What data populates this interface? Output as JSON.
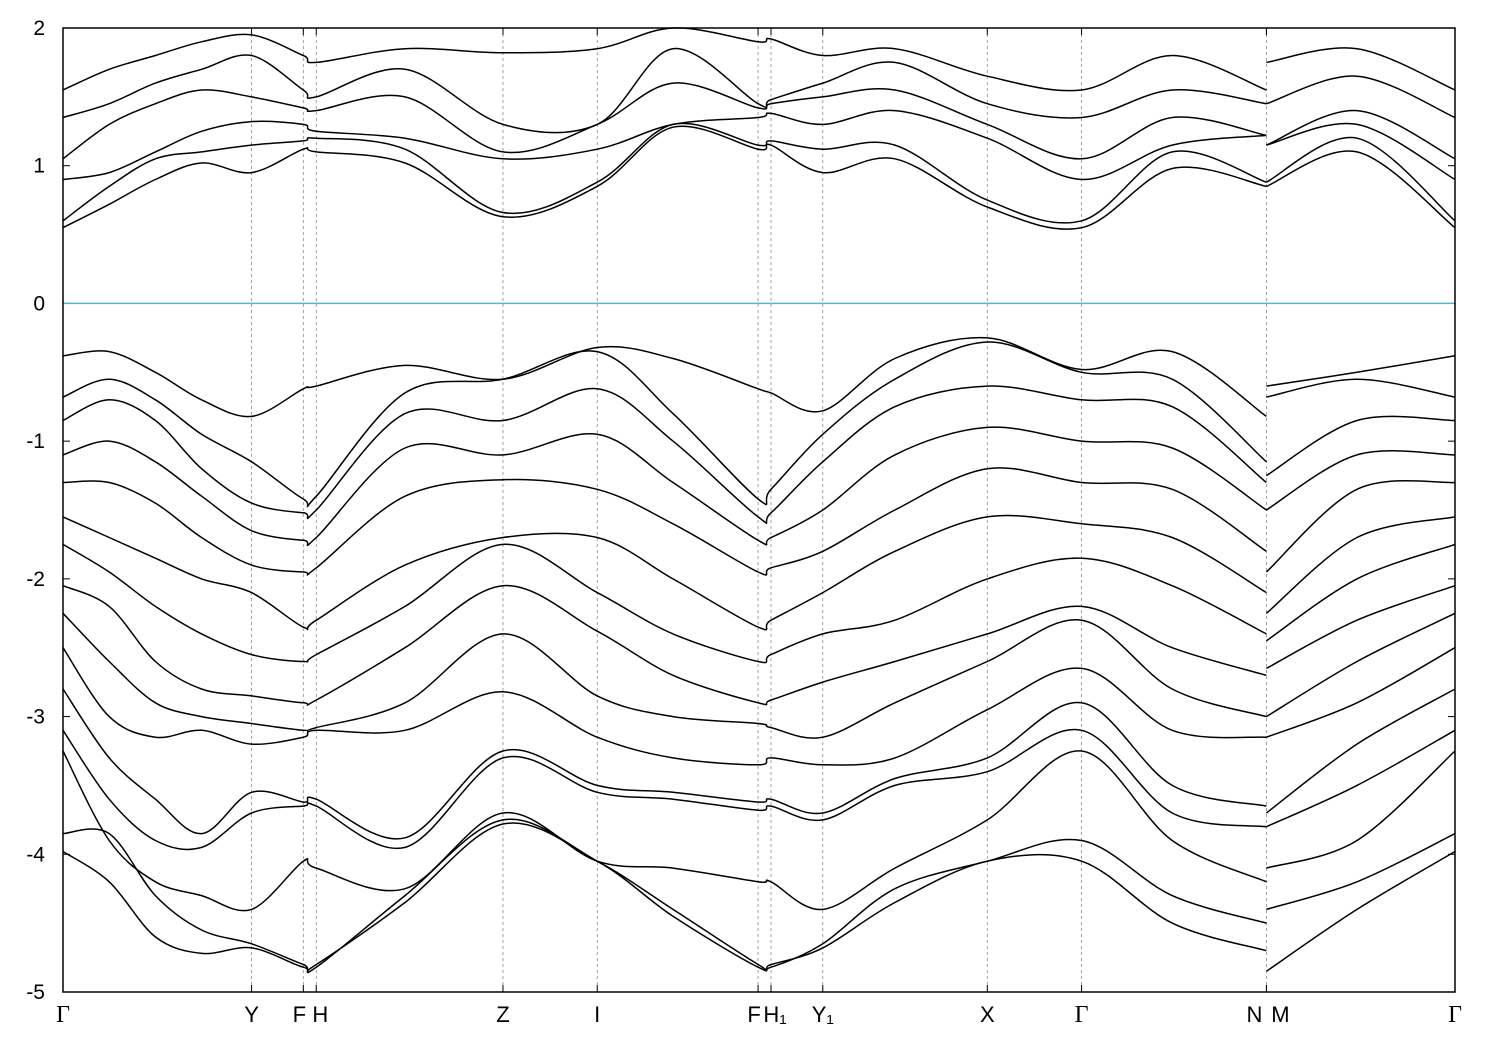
{
  "chart_data": {
    "type": "line",
    "title": "",
    "xlabel": "",
    "ylabel": "",
    "ylim": [
      -5,
      2
    ],
    "yticks": [
      2,
      1,
      0,
      -1,
      -2,
      -3,
      -4,
      -5
    ],
    "ytick_labels": [
      "2",
      "1",
      "0",
      "-1",
      "-2",
      "-3",
      "-4",
      "-5"
    ],
    "xlim": [
      0,
      7.53
    ],
    "high_symmetry_points": [
      {
        "label": "Γ",
        "x": 0.0
      },
      {
        "label": "Y",
        "x": 1.02
      },
      {
        "label": "F",
        "x": 1.3
      },
      {
        "label": "H",
        "x": 1.37
      },
      {
        "label": "Z",
        "x": 2.38
      },
      {
        "label": "I",
        "x": 2.89
      },
      {
        "label": "F",
        "x": 3.76
      },
      {
        "label": "H₁",
        "x": 3.83
      },
      {
        "label": "Y₁",
        "x": 4.11
      },
      {
        "label": "X",
        "x": 5.0
      },
      {
        "label": "Γ",
        "x": 5.51
      },
      {
        "label": "N",
        "x": 6.51
      },
      {
        "label": "M",
        "x": 6.51
      },
      {
        "label": "Γ",
        "x": 7.53
      }
    ],
    "grid": "dashed vertical lines at high-symmetry points",
    "fermi_level": {
      "y": 0,
      "color": "#5ab4c8"
    },
    "series": [
      {
        "x": [
          0,
          0.25,
          0.5,
          0.75,
          1.02,
          1.3,
          1.37,
          1.85,
          2.38,
          2.89,
          3.3,
          3.76,
          3.83,
          4.11,
          4.5,
          5.0,
          5.51,
          6.0,
          6.51,
          6.51,
          7.0,
          7.53
        ],
        "values": [
          0.55,
          0.72,
          0.9,
          1.02,
          0.95,
          1.12,
          1.1,
          1.02,
          0.63,
          0.85,
          1.28,
          1.12,
          1.15,
          0.95,
          1.05,
          0.7,
          0.55,
          0.98,
          0.85,
          0.85,
          1.1,
          0.55
        ]
      },
      {
        "x": [
          0,
          0.25,
          0.5,
          0.75,
          1.02,
          1.3,
          1.37,
          1.85,
          2.38,
          2.89,
          3.3,
          3.76,
          3.83,
          4.11,
          4.5,
          5.0,
          5.51,
          6.0,
          6.51,
          6.51,
          7.0,
          7.53
        ],
        "values": [
          0.6,
          0.85,
          1.05,
          1.1,
          1.15,
          1.18,
          1.2,
          1.12,
          0.66,
          0.88,
          1.3,
          1.15,
          1.18,
          1.12,
          1.15,
          0.75,
          0.6,
          1.1,
          0.88,
          0.88,
          1.2,
          0.6
        ]
      },
      {
        "x": [
          0,
          0.25,
          0.5,
          0.75,
          1.02,
          1.3,
          1.37,
          1.85,
          2.38,
          2.89,
          3.3,
          3.76,
          3.83,
          4.11,
          4.5,
          5.0,
          5.51,
          6.0,
          6.51,
          6.51,
          7.0,
          7.53
        ],
        "values": [
          0.9,
          0.95,
          1.1,
          1.25,
          1.32,
          1.3,
          1.25,
          1.2,
          1.05,
          1.12,
          1.3,
          1.35,
          1.38,
          1.3,
          1.4,
          1.2,
          0.9,
          1.15,
          1.22,
          1.15,
          1.3,
          0.9
        ]
      },
      {
        "x": [
          0,
          0.25,
          0.5,
          0.75,
          1.02,
          1.3,
          1.37,
          1.85,
          2.38,
          2.89,
          3.3,
          3.76,
          3.83,
          4.11,
          4.5,
          5.0,
          5.51,
          6.0,
          6.51,
          6.51,
          7.0,
          7.53
        ],
        "values": [
          1.05,
          1.3,
          1.45,
          1.55,
          1.5,
          1.42,
          1.4,
          1.5,
          1.1,
          1.3,
          1.6,
          1.42,
          1.45,
          1.5,
          1.55,
          1.3,
          1.05,
          1.35,
          1.22,
          1.15,
          1.4,
          1.05
        ]
      },
      {
        "x": [
          0,
          0.25,
          0.5,
          0.75,
          1.02,
          1.3,
          1.37,
          1.85,
          2.38,
          2.89,
          3.3,
          3.76,
          3.83,
          4.11,
          4.5,
          5.0,
          5.51,
          6.0,
          6.51,
          6.51,
          7.0,
          7.53
        ],
        "values": [
          1.35,
          1.45,
          1.6,
          1.7,
          1.8,
          1.55,
          1.5,
          1.7,
          1.3,
          1.3,
          1.85,
          1.45,
          1.48,
          1.6,
          1.75,
          1.45,
          1.35,
          1.55,
          1.45,
          1.45,
          1.65,
          1.35
        ]
      },
      {
        "x": [
          0,
          0.25,
          0.5,
          0.75,
          1.02,
          1.3,
          1.37,
          1.85,
          2.38,
          2.89,
          3.3,
          3.76,
          3.83,
          4.11,
          4.5,
          5.0,
          5.51,
          6.0,
          6.51,
          6.51,
          7.0,
          7.53
        ],
        "values": [
          1.55,
          1.7,
          1.8,
          1.9,
          1.95,
          1.8,
          1.75,
          1.85,
          1.82,
          1.85,
          2.0,
          1.9,
          1.92,
          1.8,
          1.85,
          1.65,
          1.55,
          1.8,
          1.55,
          1.75,
          1.85,
          1.55
        ]
      },
      {
        "x": [
          0,
          0.25,
          0.5,
          0.75,
          1.02,
          1.3,
          1.37,
          1.85,
          2.38,
          2.89,
          3.3,
          3.76,
          3.83,
          4.11,
          4.5,
          5.0,
          5.51,
          6.0,
          6.51,
          6.51,
          7.0,
          7.53
        ],
        "values": [
          -0.38,
          -0.35,
          -0.5,
          -0.7,
          -0.82,
          -0.62,
          -0.6,
          -0.45,
          -0.55,
          -0.32,
          -0.4,
          -0.62,
          -0.65,
          -0.78,
          -0.4,
          -0.25,
          -0.48,
          -0.35,
          -0.82,
          -0.6,
          -0.5,
          -0.38
        ]
      },
      {
        "x": [
          0,
          0.25,
          0.5,
          0.75,
          1.02,
          1.3,
          1.37,
          1.85,
          2.38,
          2.89,
          3.3,
          3.76,
          3.83,
          4.11,
          4.5,
          5.0,
          5.51,
          6.0,
          6.51,
          6.51,
          7.0,
          7.53
        ],
        "values": [
          -0.68,
          -0.55,
          -0.7,
          -0.95,
          -1.15,
          -1.42,
          -1.4,
          -0.65,
          -0.55,
          -0.35,
          -0.8,
          -1.42,
          -1.35,
          -0.95,
          -0.55,
          -0.28,
          -0.5,
          -0.55,
          -1.15,
          -0.68,
          -0.55,
          -0.68
        ]
      },
      {
        "x": [
          0,
          0.25,
          0.5,
          0.75,
          1.02,
          1.3,
          1.37,
          1.85,
          2.38,
          2.89,
          3.3,
          3.76,
          3.83,
          4.11,
          4.5,
          5.0,
          5.51,
          6.0,
          6.51,
          6.51,
          7.0,
          7.53
        ],
        "values": [
          -0.85,
          -0.7,
          -0.85,
          -1.2,
          -1.45,
          -1.52,
          -1.5,
          -0.8,
          -0.85,
          -0.62,
          -1.0,
          -1.55,
          -1.52,
          -1.15,
          -0.75,
          -0.6,
          -0.7,
          -0.75,
          -1.3,
          -1.25,
          -0.85,
          -0.85
        ]
      },
      {
        "x": [
          0,
          0.25,
          0.5,
          0.75,
          1.02,
          1.3,
          1.37,
          1.85,
          2.38,
          2.89,
          3.3,
          3.76,
          3.83,
          4.11,
          4.5,
          5.0,
          5.51,
          6.0,
          6.51,
          6.51,
          7.0,
          7.53
        ],
        "values": [
          -1.1,
          -1.0,
          -1.15,
          -1.4,
          -1.65,
          -1.72,
          -1.7,
          -1.05,
          -1.1,
          -0.95,
          -1.3,
          -1.72,
          -1.7,
          -1.5,
          -1.1,
          -0.9,
          -1.0,
          -1.05,
          -1.5,
          -1.5,
          -1.1,
          -1.1
        ]
      },
      {
        "x": [
          0,
          0.25,
          0.5,
          0.75,
          1.02,
          1.3,
          1.37,
          1.85,
          2.38,
          2.89,
          3.3,
          3.76,
          3.83,
          4.11,
          4.5,
          5.0,
          5.51,
          6.0,
          6.51,
          6.51,
          7.0,
          7.53
        ],
        "values": [
          -1.3,
          -1.3,
          -1.45,
          -1.7,
          -1.9,
          -1.95,
          -1.92,
          -1.4,
          -1.28,
          -1.35,
          -1.6,
          -1.95,
          -1.92,
          -1.8,
          -1.5,
          -1.2,
          -1.3,
          -1.35,
          -1.8,
          -1.95,
          -1.35,
          -1.3
        ]
      },
      {
        "x": [
          0,
          0.25,
          0.5,
          0.75,
          1.02,
          1.3,
          1.37,
          1.85,
          2.38,
          2.89,
          3.3,
          3.76,
          3.83,
          4.11,
          4.5,
          5.0,
          5.51,
          6.0,
          6.51,
          6.51,
          7.0,
          7.53
        ],
        "values": [
          -1.55,
          -1.7,
          -1.85,
          -2.0,
          -2.1,
          -2.35,
          -2.3,
          -1.9,
          -1.7,
          -1.7,
          -2.0,
          -2.35,
          -2.3,
          -2.1,
          -1.8,
          -1.55,
          -1.6,
          -1.7,
          -2.1,
          -2.25,
          -1.7,
          -1.55
        ]
      },
      {
        "x": [
          0,
          0.25,
          0.5,
          0.75,
          1.02,
          1.3,
          1.37,
          1.85,
          2.38,
          2.89,
          3.3,
          3.76,
          3.83,
          4.11,
          4.5,
          5.0,
          5.51,
          6.0,
          6.51,
          6.51,
          7.0,
          7.53
        ],
        "values": [
          -1.75,
          -1.95,
          -2.2,
          -2.4,
          -2.55,
          -2.6,
          -2.55,
          -2.2,
          -1.75,
          -2.1,
          -2.4,
          -2.6,
          -2.55,
          -2.4,
          -2.3,
          -2.0,
          -1.85,
          -2.05,
          -2.4,
          -2.45,
          -2.0,
          -1.75
        ]
      },
      {
        "x": [
          0,
          0.25,
          0.5,
          0.75,
          1.02,
          1.3,
          1.37,
          1.85,
          2.38,
          2.89,
          3.3,
          3.76,
          3.83,
          4.11,
          4.5,
          5.0,
          5.51,
          6.0,
          6.51,
          6.51,
          7.0,
          7.53
        ],
        "values": [
          -2.05,
          -2.2,
          -2.6,
          -2.8,
          -2.85,
          -2.9,
          -2.88,
          -2.5,
          -2.05,
          -2.38,
          -2.7,
          -2.9,
          -2.88,
          -2.75,
          -2.6,
          -2.4,
          -2.2,
          -2.5,
          -2.7,
          -2.65,
          -2.3,
          -2.05
        ]
      },
      {
        "x": [
          0,
          0.25,
          0.5,
          0.75,
          1.02,
          1.3,
          1.37,
          1.85,
          2.38,
          2.89,
          3.3,
          3.76,
          3.83,
          4.11,
          4.5,
          5.0,
          5.51,
          6.0,
          6.51,
          6.51,
          7.0,
          7.53
        ],
        "values": [
          -2.25,
          -2.6,
          -2.9,
          -3.0,
          -3.05,
          -3.1,
          -3.08,
          -2.9,
          -2.4,
          -2.85,
          -3.0,
          -3.05,
          -3.08,
          -3.15,
          -2.9,
          -2.6,
          -2.3,
          -2.8,
          -3.0,
          -3.0,
          -2.6,
          -2.25
        ]
      },
      {
        "x": [
          0,
          0.25,
          0.5,
          0.75,
          1.02,
          1.3,
          1.37,
          1.85,
          2.38,
          2.89,
          3.3,
          3.76,
          3.83,
          4.11,
          4.5,
          5.0,
          5.51,
          6.0,
          6.51,
          6.51,
          7.0,
          7.53
        ],
        "values": [
          -2.5,
          -3.0,
          -3.15,
          -3.1,
          -3.2,
          -3.15,
          -3.1,
          -3.1,
          -2.82,
          -3.15,
          -3.3,
          -3.35,
          -3.3,
          -3.35,
          -3.3,
          -2.95,
          -2.65,
          -3.1,
          -3.15,
          -3.15,
          -2.9,
          -2.5
        ]
      },
      {
        "x": [
          0,
          0.25,
          0.5,
          0.75,
          1.02,
          1.3,
          1.37,
          1.85,
          2.38,
          2.89,
          3.3,
          3.76,
          3.83,
          4.11,
          4.5,
          5.0,
          5.51,
          6.0,
          6.51,
          6.51,
          7.0,
          7.53
        ],
        "values": [
          -2.8,
          -3.3,
          -3.6,
          -3.85,
          -3.55,
          -3.62,
          -3.6,
          -3.88,
          -3.25,
          -3.5,
          -3.55,
          -3.62,
          -3.6,
          -3.7,
          -3.45,
          -3.3,
          -2.9,
          -3.5,
          -3.65,
          -3.7,
          -3.2,
          -2.8
        ]
      },
      {
        "x": [
          0,
          0.25,
          0.5,
          0.75,
          1.02,
          1.3,
          1.37,
          1.85,
          2.38,
          2.89,
          3.3,
          3.76,
          3.83,
          4.11,
          4.5,
          5.0,
          5.51,
          6.0,
          6.51,
          6.51,
          7.0,
          7.53
        ],
        "values": [
          -3.1,
          -3.6,
          -3.9,
          -3.95,
          -3.7,
          -3.65,
          -3.65,
          -3.95,
          -3.3,
          -3.55,
          -3.6,
          -3.68,
          -3.65,
          -3.75,
          -3.5,
          -3.4,
          -3.1,
          -3.7,
          -3.8,
          -3.8,
          -3.5,
          -3.1
        ]
      },
      {
        "x": [
          0,
          0.25,
          0.5,
          0.75,
          1.02,
          1.3,
          1.37,
          1.85,
          2.38,
          2.89,
          3.3,
          3.76,
          3.83,
          4.11,
          4.5,
          5.0,
          5.51,
          6.0,
          6.51,
          6.51,
          7.0,
          7.53
        ],
        "values": [
          -3.25,
          -3.9,
          -4.2,
          -4.3,
          -4.4,
          -4.05,
          -4.1,
          -4.25,
          -3.7,
          -4.05,
          -4.1,
          -4.2,
          -4.2,
          -4.4,
          -4.1,
          -3.75,
          -3.25,
          -3.9,
          -4.2,
          -4.1,
          -3.9,
          -3.25
        ]
      },
      {
        "x": [
          0,
          0.25,
          0.5,
          0.75,
          1.02,
          1.3,
          1.37,
          1.85,
          2.38,
          2.89,
          3.3,
          3.76,
          3.83,
          4.11,
          4.5,
          5.0,
          5.51,
          6.0,
          6.51,
          6.51,
          7.0,
          7.53
        ],
        "values": [
          -3.85,
          -3.85,
          -4.3,
          -4.55,
          -4.65,
          -4.8,
          -4.82,
          -4.3,
          -3.75,
          -4.05,
          -4.4,
          -4.8,
          -4.82,
          -4.65,
          -4.25,
          -4.05,
          -3.9,
          -4.3,
          -4.5,
          -4.4,
          -4.2,
          -3.85
        ]
      },
      {
        "x": [
          0,
          0.25,
          0.5,
          0.75,
          1.02,
          1.3,
          1.37,
          1.85,
          2.38,
          2.89,
          3.3,
          3.76,
          3.83,
          4.11,
          4.5,
          5.0,
          5.51,
          6.0,
          6.51,
          6.51,
          7.0,
          7.53
        ],
        "values": [
          -3.98,
          -4.2,
          -4.6,
          -4.72,
          -4.68,
          -4.82,
          -4.8,
          -4.35,
          -3.78,
          -4.05,
          -4.45,
          -4.82,
          -4.8,
          -4.68,
          -4.35,
          -4.05,
          -4.05,
          -4.5,
          -4.7,
          -4.85,
          -4.4,
          -3.98
        ]
      }
    ]
  }
}
